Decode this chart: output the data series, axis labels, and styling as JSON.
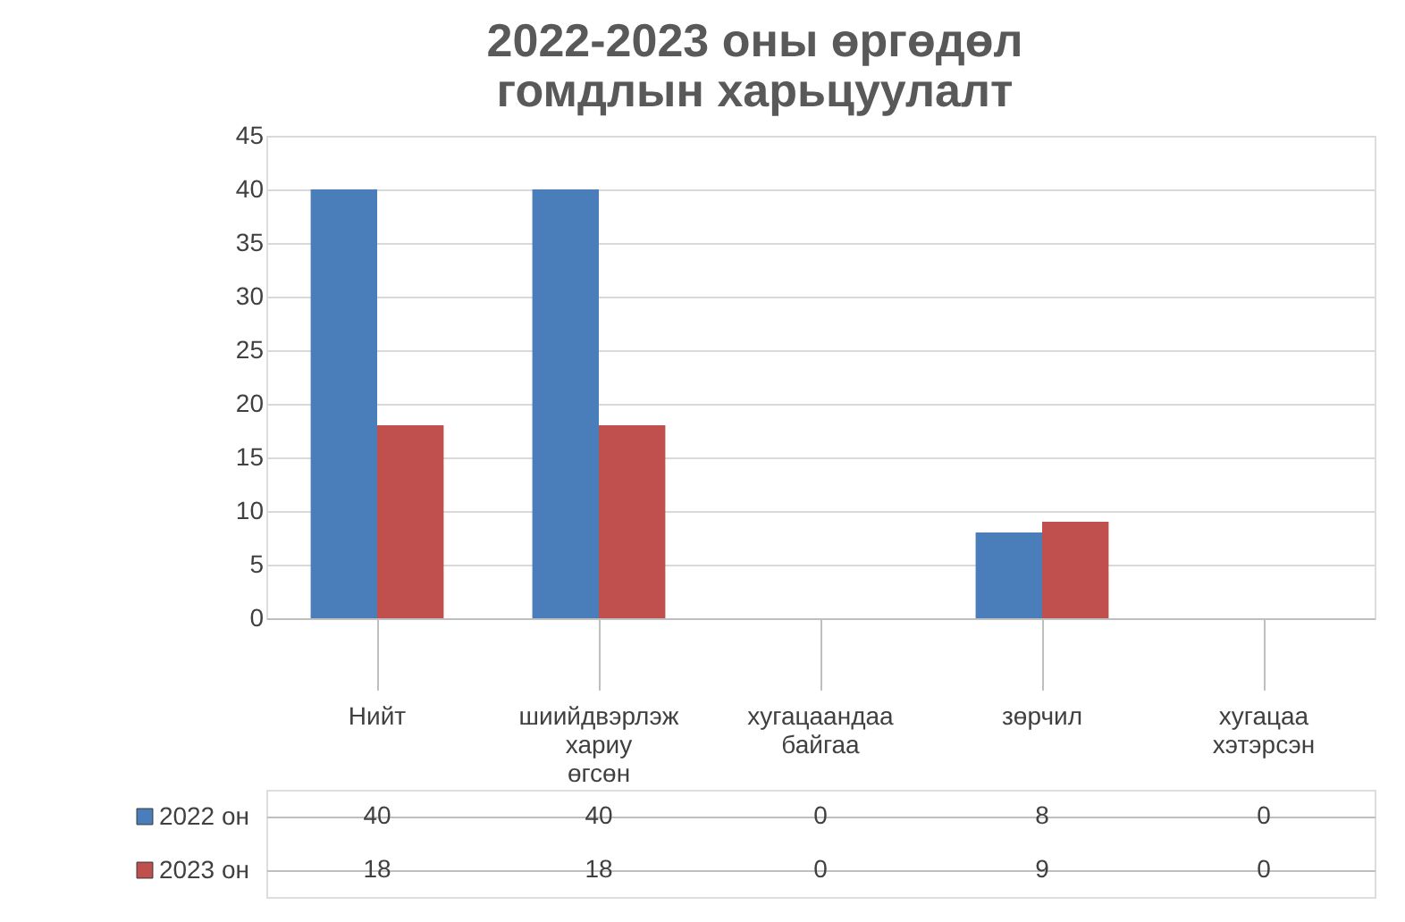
{
  "chart_data": {
    "type": "bar",
    "title": "2022-2023 оны өргөдөл гомдлын харьцуулалт",
    "categories": [
      "Нийт",
      "шиийдвэрлэж хариу өгсөн",
      "хугацаандаа байгаа",
      "зөрчил",
      "хугацаа хэтэрсэн"
    ],
    "series": [
      {
        "name": "2022 он",
        "color": "#4a7ebb",
        "values": [
          40,
          40,
          0,
          8,
          0
        ]
      },
      {
        "name": "2023 он",
        "color": "#c0504d",
        "values": [
          18,
          18,
          0,
          9,
          0
        ]
      }
    ],
    "ylim": [
      0,
      45
    ],
    "yticks": [
      0,
      5,
      10,
      15,
      20,
      25,
      30,
      35,
      40,
      45
    ],
    "grid": "y",
    "data_labels": true,
    "legend": "bottom"
  }
}
